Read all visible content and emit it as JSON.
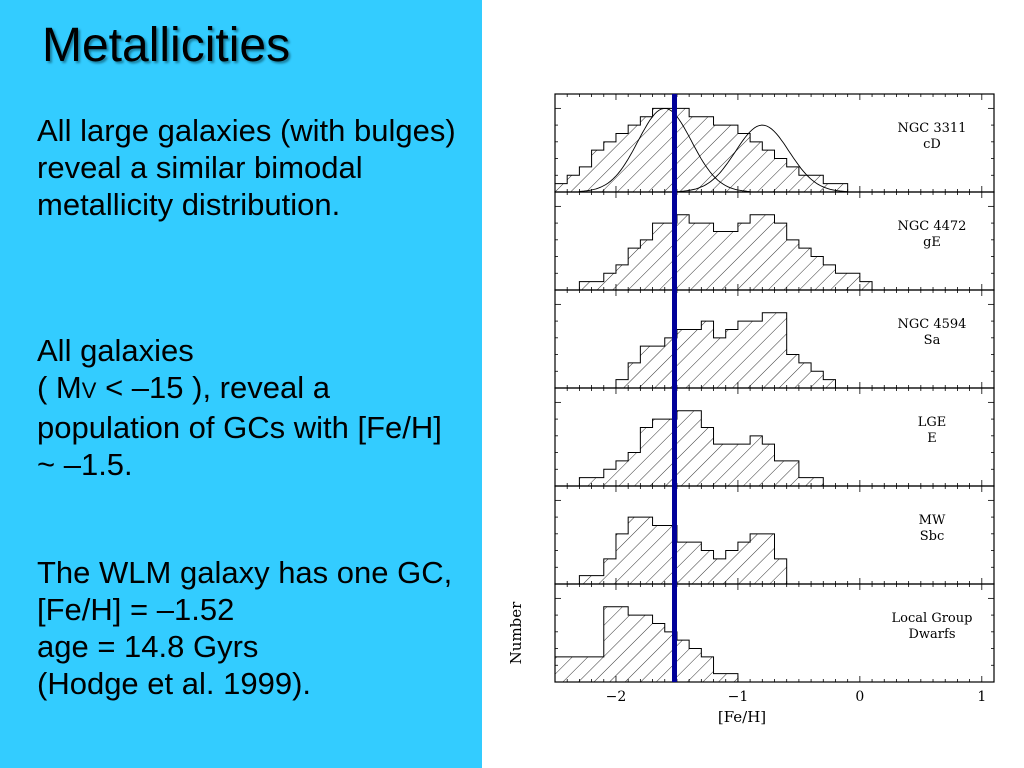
{
  "slide": {
    "title": "Metallicities",
    "p1": "All large galaxies (with bulges)  reveal a similar bimodal metallicity distribution.",
    "p2_a": "All galaxies",
    "p2_b": "( M",
    "p2_sub": "V",
    "p2_c": " < –15 ), reveal a population of GCs with [Fe/H] ~ –1.5.",
    "p3_a": "The WLM galaxy has one GC, [Fe/H] = –1.52",
    "p3_b": "age = 14.8 Gyrs",
    "p3_c": "(Hodge et al. 1999)."
  },
  "colors": {
    "panel": "#33ccff",
    "marker_line": "#000099",
    "text": "#000000"
  },
  "chart_data": {
    "type": "bar",
    "subtype": "stacked histogram panels",
    "xlabel": "[Fe/H]",
    "ylabel": "Number",
    "xlim": [
      -2.5,
      1.1
    ],
    "xticks": [
      -2,
      -1,
      0,
      1
    ],
    "xticklabels": [
      "−2",
      "−1",
      "0",
      "1"
    ],
    "bin_width": 0.1,
    "bin_start": -2.5,
    "marker": {
      "x": -1.52,
      "color": "#000099"
    },
    "panels": [
      {
        "name": "NGC 3311",
        "type_label": "cD",
        "values": [
          1,
          2,
          3,
          5,
          6,
          7,
          8,
          9,
          10,
          10,
          10,
          9,
          9,
          8,
          8,
          7,
          6,
          5,
          4,
          3,
          2,
          2,
          1,
          1,
          0,
          0,
          0,
          0,
          0,
          0,
          0,
          0,
          0,
          0,
          0,
          0
        ],
        "gaussians": [
          {
            "mu": -1.6,
            "sigma": 0.22,
            "amp": 10
          },
          {
            "mu": -0.8,
            "sigma": 0.22,
            "amp": 8
          }
        ]
      },
      {
        "name": "NGC 4472",
        "type_label": "gE",
        "values": [
          0,
          0,
          1,
          1,
          2,
          3,
          5,
          6,
          8,
          8,
          9,
          8,
          8,
          7,
          7,
          8,
          9,
          9,
          8,
          6,
          5,
          4,
          3,
          2,
          2,
          1,
          0,
          0,
          0,
          0,
          0,
          0,
          0,
          0,
          0,
          0
        ]
      },
      {
        "name": "NGC 4594",
        "type_label": "Sa",
        "values": [
          0,
          0,
          0,
          0,
          0,
          1,
          3,
          5,
          5,
          6,
          7,
          7,
          8,
          6,
          7,
          8,
          8,
          9,
          9,
          4,
          3,
          2,
          1,
          0,
          0,
          0,
          0,
          0,
          0,
          0,
          0,
          0,
          0,
          0,
          0,
          0
        ]
      },
      {
        "name": "LGE",
        "type_label": "E",
        "values": [
          0,
          0,
          1,
          1,
          2,
          3,
          4,
          7,
          8,
          8,
          9,
          9,
          7,
          5,
          5,
          5,
          6,
          5,
          3,
          3,
          1,
          1,
          0,
          0,
          0,
          0,
          0,
          0,
          0,
          0,
          0,
          0,
          0,
          0,
          0,
          0
        ]
      },
      {
        "name": "MW",
        "type_label": "Sbc",
        "values": [
          0,
          0,
          1,
          1,
          3,
          6,
          8,
          8,
          7,
          7,
          5,
          5,
          4,
          3,
          4,
          5,
          6,
          6,
          3,
          0,
          0,
          0,
          0,
          0,
          0,
          0,
          0,
          0,
          0,
          0,
          0,
          0,
          0,
          0,
          0,
          0
        ]
      },
      {
        "name": "Local Group",
        "type_label": "Dwarfs",
        "values": [
          3,
          3,
          3,
          3,
          9,
          9,
          8,
          8,
          7,
          6,
          5,
          4,
          3,
          1,
          1,
          0,
          0,
          0,
          0,
          0,
          0,
          0,
          0,
          0,
          0,
          0,
          0,
          0,
          0,
          0,
          0,
          0,
          0,
          0,
          0,
          0
        ]
      }
    ]
  }
}
